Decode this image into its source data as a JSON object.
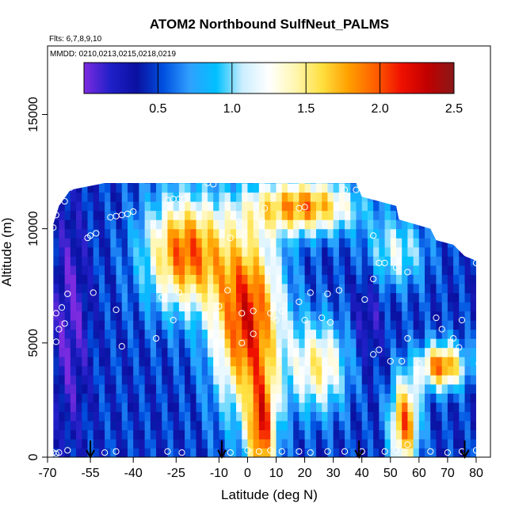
{
  "chart_data": {
    "type": "heatmap",
    "title": "ATOM2 Northbound SulfNeut_PALMS",
    "flights_note": "Flts: 6,7,8,9,10",
    "dates_note": "MMDD: 0210,0213,0215,0218,0219",
    "xlabel": "Latitude (deg N)",
    "ylabel": "Altitude (m)",
    "xlim": [
      -70,
      85
    ],
    "ylim": [
      0,
      18000
    ],
    "x_ticks": [
      -70,
      -55,
      -40,
      -25,
      -10,
      0,
      10,
      20,
      30,
      40,
      50,
      60,
      70,
      80
    ],
    "x_tick_labels": [
      "-70",
      "-55",
      "-40",
      "-25",
      "-10",
      "0",
      "10",
      "20",
      "30",
      "40",
      "50",
      "60",
      "70",
      "80"
    ],
    "y_ticks": [
      0,
      5000,
      10000,
      15000
    ],
    "y_tick_labels": [
      "0",
      "5000",
      "10000",
      "15000"
    ],
    "colorbar": {
      "range": [
        0,
        2.5
      ],
      "ticks": [
        0.5,
        1.0,
        1.5,
        2.0,
        2.5
      ],
      "tick_labels": [
        "0.5",
        "1.0",
        "1.5",
        "2.0",
        "2.5"
      ],
      "colors": [
        "#7d2be0",
        "#2020c8",
        "#0a10a0",
        "#0050e0",
        "#30a0ff",
        "#00c0ff",
        "#cceeff",
        "#ffffff",
        "#fff6b0",
        "#ffe040",
        "#ffa000",
        "#ff6000",
        "#f01000",
        "#c00000",
        "#8a1818"
      ]
    },
    "profile_arrows_lat": [
      -55,
      -9,
      39,
      76
    ],
    "profile_tops_m": [
      [
        -68,
        10200
      ],
      [
        -66,
        11000
      ],
      [
        -62,
        11700
      ],
      [
        -50,
        12000
      ],
      [
        -40,
        12000
      ],
      [
        -20,
        12000
      ],
      [
        0,
        12000
      ],
      [
        20,
        12000
      ],
      [
        38,
        12000
      ],
      [
        40,
        11400
      ],
      [
        52,
        11000
      ],
      [
        53,
        10400
      ],
      [
        64,
        10000
      ],
      [
        66,
        9500
      ],
      [
        72,
        9300
      ],
      [
        76,
        8800
      ],
      [
        80,
        8600
      ],
      [
        80,
        0
      ]
    ],
    "points": [
      [
        -68,
        10050
      ],
      [
        -67,
        5050
      ],
      [
        -67,
        6300
      ],
      [
        -66,
        5600
      ],
      [
        -65,
        6550
      ],
      [
        -64,
        5850
      ],
      [
        -63,
        7150
      ],
      [
        -67,
        10600
      ],
      [
        -64,
        11200
      ],
      [
        -62,
        11800
      ],
      [
        -61,
        11900
      ],
      [
        -56,
        9600
      ],
      [
        -55,
        9700
      ],
      [
        -53,
        9800
      ],
      [
        -54,
        7200
      ],
      [
        -46,
        6450
      ],
      [
        -44,
        4850
      ],
      [
        -48,
        10500
      ],
      [
        -46,
        10550
      ],
      [
        -44,
        10600
      ],
      [
        -42,
        10650
      ],
      [
        -40,
        10750
      ],
      [
        -30,
        7000
      ],
      [
        -32,
        5200
      ],
      [
        -26,
        6000
      ],
      [
        -24,
        7200
      ],
      [
        -28,
        11250
      ],
      [
        -26,
        11300
      ],
      [
        -24,
        11300
      ],
      [
        -22,
        11300
      ],
      [
        -14,
        12000
      ],
      [
        -12,
        11950
      ],
      [
        -10,
        6600
      ],
      [
        -7,
        7300
      ],
      [
        -6,
        9600
      ],
      [
        -3,
        10300
      ],
      [
        -2,
        6300
      ],
      [
        -2,
        5000
      ],
      [
        2,
        6400
      ],
      [
        2,
        5400
      ],
      [
        5,
        10350
      ],
      [
        6,
        10900
      ],
      [
        8,
        6300
      ],
      [
        10,
        6000
      ],
      [
        12,
        6400
      ],
      [
        18,
        6800
      ],
      [
        18,
        10900
      ],
      [
        20,
        10950
      ],
      [
        20,
        6000
      ],
      [
        22,
        7200
      ],
      [
        26,
        6100
      ],
      [
        28,
        7150
      ],
      [
        29,
        5900
      ],
      [
        32,
        7300
      ],
      [
        34,
        11700
      ],
      [
        38,
        11700
      ],
      [
        41,
        6900
      ],
      [
        44,
        9700
      ],
      [
        44,
        7800
      ],
      [
        46,
        8500
      ],
      [
        48,
        8500
      ],
      [
        44,
        4500
      ],
      [
        46,
        4700
      ],
      [
        50,
        4200
      ],
      [
        52,
        8300
      ],
      [
        54,
        4200
      ],
      [
        56,
        5200
      ],
      [
        56,
        8100
      ],
      [
        60,
        4100
      ],
      [
        66,
        6100
      ],
      [
        68,
        5600
      ],
      [
        72,
        5200
      ],
      [
        74,
        4800
      ],
      [
        75,
        6000
      ],
      [
        76,
        9300
      ],
      [
        80,
        8500
      ],
      [
        81,
        4100
      ],
      [
        -68,
        200
      ],
      [
        -67,
        150
      ],
      [
        -66,
        200
      ],
      [
        -63,
        300
      ],
      [
        -50,
        200
      ],
      [
        -46,
        250
      ],
      [
        -28,
        250
      ],
      [
        -23,
        200
      ],
      [
        -6,
        200
      ],
      [
        0,
        300
      ],
      [
        4,
        250
      ],
      [
        8,
        300
      ],
      [
        12,
        250
      ],
      [
        18,
        250
      ],
      [
        22,
        200
      ],
      [
        28,
        250
      ],
      [
        34,
        250
      ],
      [
        40,
        250
      ],
      [
        48,
        250
      ],
      [
        52,
        300
      ],
      [
        56,
        550
      ],
      [
        64,
        250
      ],
      [
        70,
        200
      ],
      [
        75,
        250
      ],
      [
        80,
        300
      ]
    ]
  }
}
